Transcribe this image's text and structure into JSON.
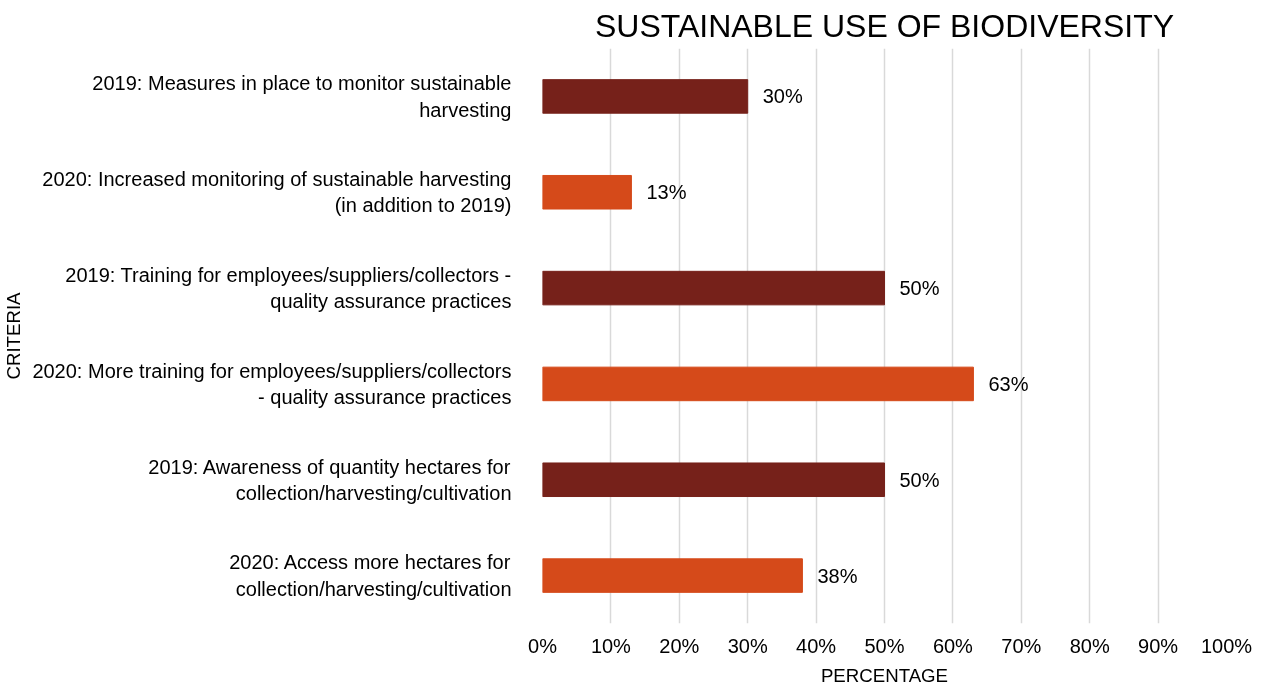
{
  "chart_data": {
    "type": "bar",
    "orientation": "horizontal",
    "title": "SUSTAINABLE USE OF BIODIVERSITY",
    "xlabel": "PERCENTAGE",
    "ylabel": "CRITERIA",
    "categories": [
      "2019: Measures in place to monitor sustainable harvesting",
      "2020: Increased monitoring of sustainable harvesting (in addition to 2019)",
      "2019: Training for employees/suppliers/collectors - quality assurance practices",
      "2020: More training for employees/suppliers/collectors - quality assurance practices",
      "2019: Awareness of quantity hectares for collection/harvesting/cultivation",
      "2020: Access more hectares for collection/harvesting/cultivation"
    ],
    "values": [
      30,
      13,
      50,
      63,
      50,
      38
    ],
    "colors": [
      "#76211a",
      "#d54a1a",
      "#76211a",
      "#d54a1a",
      "#76211a",
      "#d54a1a"
    ],
    "value_labels": [
      "30%",
      "13%",
      "50%",
      "63%",
      "50%",
      "38%"
    ],
    "xlim": [
      0,
      100
    ],
    "xticks": [
      {
        "value": 0,
        "label": "0%"
      },
      {
        "value": 10,
        "label": "10%"
      },
      {
        "value": 20,
        "label": "20%"
      },
      {
        "value": 30,
        "label": "30%"
      },
      {
        "value": 40,
        "label": "40%"
      },
      {
        "value": 50,
        "label": "50%"
      },
      {
        "value": 60,
        "label": "60%"
      },
      {
        "value": 70,
        "label": "70%"
      },
      {
        "value": 80,
        "label": "80%"
      },
      {
        "value": 90,
        "label": "90%"
      },
      {
        "value": 100,
        "label": "100%"
      }
    ],
    "grid": "x"
  }
}
